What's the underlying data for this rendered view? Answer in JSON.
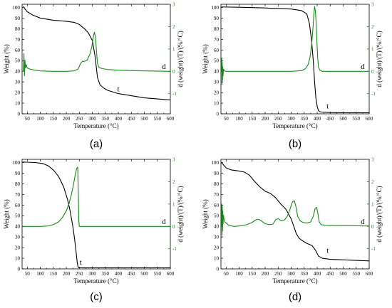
{
  "colors": {
    "weight": "#000000",
    "derivative": "#1a8a1a",
    "axis": "#000000",
    "right_axis": "#1a8a1a"
  },
  "chart_data": [
    {
      "panel": "(a)",
      "type": "line",
      "xlabel": "Temperature (°C)",
      "ylabel": "Weight (%)",
      "y2label": "d (weight)/(T)/(%/°C)",
      "xlim": [
        30,
        600
      ],
      "ylim": [
        0,
        103
      ],
      "y2lim": [
        -1.9,
        3
      ],
      "xticks": [
        50,
        100,
        150,
        200,
        250,
        300,
        350,
        400,
        450,
        500,
        550,
        600
      ],
      "yticks": [
        0,
        10,
        20,
        30,
        40,
        50,
        60,
        70,
        80,
        90,
        100
      ],
      "y2ticks": [
        -1,
        0,
        1,
        2,
        3
      ],
      "labels": [
        {
          "text": "t",
          "x": 400,
          "y": 21
        },
        {
          "text": "d",
          "x": 575,
          "y2": 0.1
        }
      ],
      "series": [
        {
          "name": "t",
          "axis": "left",
          "x": [
            35,
            40,
            50,
            70,
            100,
            150,
            200,
            230,
            250,
            270,
            285,
            300,
            310,
            320,
            330,
            345,
            360,
            400,
            450,
            500,
            550,
            600
          ],
          "y": [
            101,
            99,
            96,
            93,
            90,
            88,
            87,
            86,
            84,
            80,
            76,
            69,
            55,
            34,
            27,
            24,
            22,
            19,
            17,
            15,
            14,
            13
          ]
        },
        {
          "name": "d",
          "axis": "right",
          "x": [
            35,
            37,
            39,
            41,
            43,
            46,
            50,
            60,
            80,
            100,
            150,
            200,
            230,
            245,
            255,
            262,
            270,
            280,
            290,
            298,
            303,
            308,
            312,
            316,
            320,
            325,
            330,
            340,
            360,
            400,
            450,
            500,
            550,
            600
          ],
          "y": [
            0,
            0.8,
            -0.2,
            0.5,
            0.15,
            0.3,
            0.15,
            0.1,
            0.05,
            0.02,
            0,
            0,
            0.02,
            0.1,
            0.35,
            0.45,
            0.45,
            0.5,
            0.75,
            1.1,
            1.5,
            1.75,
            1.55,
            0.9,
            0.35,
            0.18,
            0.15,
            0.12,
            0.08,
            0.05,
            0.03,
            0.02,
            0.01,
            0.0
          ]
        }
      ]
    },
    {
      "panel": "(b)",
      "type": "line",
      "xlabel": "Temperature (°C)",
      "ylabel": "Weight (%)",
      "y2label": "d (weight)/(T)/(%/°C)",
      "xlim": [
        30,
        600
      ],
      "ylim": [
        0,
        103
      ],
      "y2lim": [
        -1.9,
        3
      ],
      "xticks": [
        50,
        100,
        150,
        200,
        250,
        300,
        350,
        400,
        450,
        500,
        550,
        600
      ],
      "yticks": [
        0,
        10,
        20,
        30,
        40,
        50,
        60,
        70,
        80,
        90,
        100
      ],
      "y2ticks": [
        -1,
        0,
        1,
        2,
        3
      ],
      "labels": [
        {
          "text": "t",
          "x": 440,
          "y": 5
        },
        {
          "text": "d",
          "x": 575,
          "y2": 0.1
        }
      ],
      "series": [
        {
          "name": "t",
          "axis": "left",
          "x": [
            32,
            100,
            200,
            300,
            340,
            360,
            370,
            378,
            385,
            390,
            395,
            400,
            405,
            410,
            420,
            450,
            500,
            600
          ],
          "y": [
            100.5,
            100.2,
            99.5,
            98.5,
            97,
            94,
            85,
            70,
            50,
            30,
            15,
            7,
            3,
            2,
            1.5,
            1.2,
            1,
            1
          ]
        },
        {
          "name": "d",
          "axis": "right",
          "x": [
            32,
            33,
            34,
            35,
            36,
            37,
            38,
            40,
            44,
            48,
            55,
            100,
            200,
            300,
            340,
            355,
            365,
            372,
            378,
            383,
            387,
            390,
            393,
            396,
            399,
            402,
            405,
            410,
            420,
            450,
            500,
            600
          ],
          "y": [
            0,
            0.6,
            -0.6,
            0.4,
            -0.4,
            0.2,
            -0.2,
            0.1,
            0.02,
            0,
            0,
            0,
            0,
            0,
            0.03,
            0.12,
            0.3,
            0.6,
            1.1,
            1.8,
            2.5,
            2.9,
            2.7,
            2.2,
            1.3,
            0.6,
            0.2,
            0.05,
            0,
            0,
            0,
            0
          ]
        }
      ]
    },
    {
      "panel": "(c)",
      "type": "line",
      "xlabel": "Temperature (°C)",
      "ylabel": "Weight (%)",
      "y2label": "d (weight)/(T)/(%/°C)",
      "xlim": [
        30,
        600
      ],
      "ylim": [
        0,
        103
      ],
      "y2lim": [
        -1.9,
        3
      ],
      "xticks": [
        50,
        100,
        150,
        200,
        250,
        300,
        350,
        400,
        450,
        500,
        550,
        600
      ],
      "yticks": [
        0,
        10,
        20,
        30,
        40,
        50,
        60,
        70,
        80,
        90,
        100
      ],
      "y2ticks": [
        -1,
        0,
        1,
        2,
        3
      ],
      "labels": [
        {
          "text": "t",
          "x": 255,
          "y": 4
        },
        {
          "text": "d",
          "x": 575,
          "y2": 0.1
        }
      ],
      "series": [
        {
          "name": "t",
          "axis": "left",
          "x": [
            32,
            80,
            110,
            130,
            150,
            170,
            190,
            205,
            215,
            225,
            232,
            238,
            242,
            245,
            248,
            300,
            400,
            600
          ],
          "y": [
            100.5,
            100,
            99,
            97,
            93,
            87,
            77,
            65,
            54,
            40,
            28,
            15,
            6,
            2,
            1,
            1,
            1,
            1
          ]
        },
        {
          "name": "d",
          "axis": "right",
          "x": [
            32,
            60,
            100,
            130,
            150,
            170,
            185,
            200,
            210,
            220,
            228,
            235,
            240,
            244,
            246,
            248,
            250,
            300,
            400,
            600
          ],
          "y": [
            0,
            0,
            0,
            0.02,
            0.08,
            0.2,
            0.4,
            0.7,
            1.0,
            1.45,
            1.9,
            2.35,
            2.6,
            2.65,
            1.5,
            0.3,
            0,
            0,
            0,
            0
          ]
        }
      ]
    },
    {
      "panel": "(d)",
      "type": "line",
      "xlabel": "Temperature (°C)",
      "ylabel": "Weight (%)",
      "y2label": "d (weight)/(T)/(%/°C)",
      "xlim": [
        30,
        600
      ],
      "ylim": [
        0,
        103
      ],
      "y2lim": [
        -1.9,
        3
      ],
      "xticks": [
        50,
        100,
        150,
        200,
        250,
        300,
        350,
        400,
        450,
        500,
        550,
        600
      ],
      "yticks": [
        0,
        10,
        20,
        30,
        40,
        50,
        60,
        70,
        80,
        90,
        100
      ],
      "y2ticks": [
        -1,
        0,
        1,
        2,
        3
      ],
      "labels": [
        {
          "text": "t",
          "x": 440,
          "y": 15
        },
        {
          "text": "d",
          "x": 575,
          "y2": 0.1
        }
      ],
      "series": [
        {
          "name": "t",
          "axis": "left",
          "x": [
            32,
            50,
            70,
            100,
            120,
            140,
            160,
            180,
            200,
            220,
            240,
            260,
            280,
            300,
            310,
            320,
            330,
            340,
            360,
            380,
            395,
            405,
            420,
            450,
            500,
            550,
            600
          ],
          "y": [
            100,
            95,
            93,
            92,
            91,
            88,
            82,
            77,
            73,
            71,
            67,
            61,
            56,
            47,
            40,
            33,
            29,
            27,
            24,
            22,
            17,
            12,
            10,
            9,
            8.5,
            8,
            7.5
          ]
        },
        {
          "name": "d",
          "axis": "right",
          "x": [
            32,
            33,
            34,
            35,
            36,
            37,
            38,
            40,
            42,
            45,
            50,
            60,
            80,
            100,
            130,
            150,
            165,
            175,
            185,
            200,
            215,
            230,
            240,
            250,
            258,
            265,
            275,
            285,
            295,
            305,
            312,
            318,
            325,
            335,
            345,
            360,
            375,
            385,
            392,
            398,
            403,
            408,
            415,
            430,
            470,
            520,
            600
          ],
          "y": [
            0,
            1.0,
            -0.4,
            0.9,
            -0.2,
            0.7,
            0.1,
            0.5,
            0.3,
            0.2,
            0.15,
            0.05,
            0,
            0.02,
            0.08,
            0.18,
            0.3,
            0.32,
            0.25,
            0.12,
            0.08,
            0.1,
            0.3,
            0.35,
            0.28,
            0.25,
            0.3,
            0.45,
            0.75,
            1.1,
            1.15,
            0.9,
            0.45,
            0.25,
            0.18,
            0.15,
            0.2,
            0.45,
            0.8,
            0.85,
            0.55,
            0.2,
            0.08,
            0.05,
            0.04,
            0.03,
            0.02
          ]
        }
      ]
    }
  ]
}
